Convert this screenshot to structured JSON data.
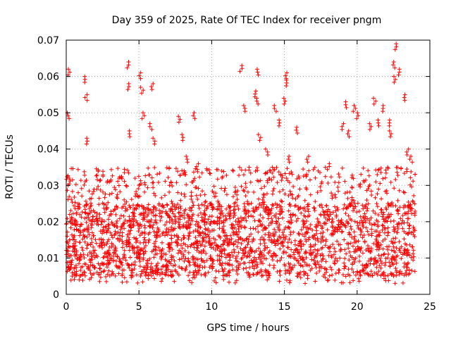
{
  "chart_data": {
    "type": "scatter",
    "title": "Day 359 of 2025, Rate Of TEC Index for receiver pngm",
    "xlabel": "GPS time / hours",
    "ylabel": "ROTI / TECUs",
    "xlim": [
      0,
      25
    ],
    "ylim": [
      0,
      0.07
    ],
    "xticks": [
      0,
      5,
      10,
      15,
      20,
      25
    ],
    "xtick_labels": [
      "0",
      "5",
      "10",
      "15",
      "20",
      "25"
    ],
    "yticks": [
      0,
      0.01,
      0.02,
      0.03,
      0.04,
      0.05,
      0.06,
      0.07
    ],
    "ytick_labels": [
      "0",
      "0.01",
      "0.02",
      "0.03",
      "0.04",
      "0.05",
      "0.06",
      "0.07"
    ],
    "grid": true,
    "marker": "+",
    "color": "#ff0000",
    "data_x_range": [
      0,
      24
    ],
    "typical_band": [
      0.005,
      0.025
    ],
    "series": [
      {
        "name": "ROTI",
        "x": [
          0.05,
          0.15,
          0.2,
          0.25,
          0.3,
          0.3,
          0.6,
          0.9,
          1.2,
          1.3,
          1.35,
          1.4,
          1.5,
          1.8,
          2.2,
          2.5,
          2.9,
          3.3,
          3.6,
          4.0,
          4.2,
          4.3,
          4.4,
          4.5,
          4.6,
          5.0,
          5.1,
          5.2,
          5.3,
          5.4,
          5.8,
          5.9,
          6.0,
          6.1,
          6.5,
          6.9,
          7.3,
          7.6,
          7.8,
          8.0,
          8.3,
          8.6,
          8.8,
          9.0,
          9.4,
          9.8,
          10.2,
          10.6,
          11.0,
          11.2,
          11.6,
          11.8,
          12.0,
          12.3,
          12.6,
          13.0,
          13.1,
          13.2,
          13.3,
          13.5,
          13.8,
          14.1,
          14.4,
          14.6,
          14.8,
          15.0,
          15.1,
          15.2,
          15.3,
          15.5,
          15.8,
          16.1,
          16.4,
          16.6,
          16.8,
          17.2,
          17.6,
          18.0,
          18.4,
          18.8,
          19.0,
          19.2,
          19.4,
          19.6,
          19.8,
          20.0,
          20.3,
          20.6,
          20.9,
          21.2,
          21.5,
          21.8,
          22.0,
          22.2,
          22.3,
          22.5,
          22.6,
          22.7,
          22.9,
          23.2,
          23.5,
          23.7,
          23.9
        ],
        "y": [
          0.012,
          0.05,
          0.062,
          0.032,
          0.022,
          0.009,
          0.014,
          0.011,
          0.016,
          0.06,
          0.055,
          0.043,
          0.018,
          0.012,
          0.021,
          0.015,
          0.019,
          0.013,
          0.017,
          0.011,
          0.064,
          0.058,
          0.045,
          0.02,
          0.013,
          0.012,
          0.061,
          0.057,
          0.05,
          0.015,
          0.047,
          0.058,
          0.043,
          0.014,
          0.012,
          0.018,
          0.025,
          0.015,
          0.049,
          0.044,
          0.038,
          0.027,
          0.05,
          0.036,
          0.022,
          0.018,
          0.015,
          0.012,
          0.017,
          0.011,
          0.025,
          0.018,
          0.063,
          0.052,
          0.035,
          0.056,
          0.054,
          0.062,
          0.044,
          0.026,
          0.04,
          0.035,
          0.052,
          0.048,
          0.033,
          0.054,
          0.061,
          0.059,
          0.038,
          0.022,
          0.046,
          0.014,
          0.02,
          0.038,
          0.013,
          0.012,
          0.016,
          0.036,
          0.018,
          0.02,
          0.047,
          0.053,
          0.045,
          0.026,
          0.052,
          0.05,
          0.018,
          0.023,
          0.047,
          0.054,
          0.048,
          0.052,
          0.035,
          0.048,
          0.045,
          0.064,
          0.06,
          0.069,
          0.062,
          0.055,
          0.04,
          0.038,
          0.018
        ]
      }
    ]
  }
}
